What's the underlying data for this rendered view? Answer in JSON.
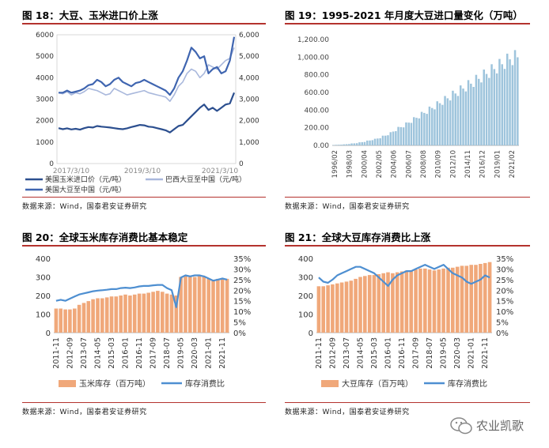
{
  "page": {
    "source_text": "数据来源：Wind，国泰君安证券研究",
    "watermark_text": "农业凯歌"
  },
  "chart_data": [
    {
      "id": "fig18",
      "title": "图 18：大豆、玉米进口价上涨",
      "type": "line",
      "x_ticks": [
        "2017/3/10",
        "2019/3/10",
        "2021/3/10"
      ],
      "ylim_left": [
        0,
        6000
      ],
      "y_ticks_left": [
        "0",
        "1000",
        "2000",
        "3000",
        "4000",
        "5000",
        "6000"
      ],
      "ylim_right": [
        0,
        6000
      ],
      "y_ticks_right": [
        "0",
        "1,000",
        "2,000",
        "3,000",
        "4,000",
        "5,000",
        "6,000"
      ],
      "series": [
        {
          "name": "美国玉米进口价（元/吨）",
          "color": "#2c4f8f",
          "axis": "left",
          "values": [
            1650,
            1600,
            1640,
            1590,
            1620,
            1580,
            1650,
            1700,
            1680,
            1750,
            1720,
            1700,
            1680,
            1650,
            1620,
            1600,
            1640,
            1700,
            1750,
            1800,
            1780,
            1720,
            1700,
            1650,
            1600,
            1550,
            1450,
            1600,
            1750,
            1800,
            2000,
            2200,
            2400,
            2600,
            2750,
            2500,
            2600,
            2450,
            2600,
            2750,
            2800,
            3300
          ]
        },
        {
          "name": "巴西大豆至中国（元/吨）",
          "color": "#a9b8dc",
          "axis": "right",
          "values": [
            3300,
            3250,
            3350,
            3200,
            3300,
            3250,
            3350,
            3500,
            3450,
            3400,
            3300,
            3200,
            3250,
            3500,
            3400,
            3300,
            3200,
            3250,
            3300,
            3350,
            3400,
            3300,
            3250,
            3200,
            3150,
            3100,
            2900,
            3200,
            3600,
            3800,
            4200,
            4400,
            4300,
            4000,
            4200,
            4600,
            4500,
            4400,
            4600,
            4800,
            4900,
            5400
          ]
        },
        {
          "name": "美国大豆至中国（元/吨）",
          "color": "#3f65b0",
          "axis": "right",
          "values": [
            3300,
            3300,
            3400,
            3300,
            3350,
            3400,
            3500,
            3650,
            3700,
            3900,
            3800,
            3600,
            3700,
            3900,
            4000,
            3800,
            3700,
            3600,
            3750,
            3800,
            3900,
            3800,
            3700,
            3600,
            3500,
            3400,
            3200,
            3500,
            4000,
            4300,
            4800,
            5400,
            5200,
            4900,
            5000,
            4200,
            4400,
            4500,
            4200,
            4300,
            4800,
            5900
          ]
        }
      ]
    },
    {
      "id": "fig19",
      "title": "图 19：1995-2021 年月度大豆进口量变化（万吨）",
      "type": "bar",
      "color": "#9ec4dc",
      "ylim": [
        0,
        1200
      ],
      "y_ticks": [
        "0.00",
        "200.00",
        "400.00",
        "600.00",
        "800.00",
        "1,000.00",
        "1,200.00"
      ],
      "x_ticks": [
        "1996/02",
        "1998/03",
        "2000/04",
        "2002/05",
        "2004/06",
        "2006/07",
        "2008/08",
        "2010/09",
        "2012/10",
        "2014/11",
        "2016/12",
        "2019/01",
        "2021/02"
      ],
      "values": [
        5,
        6,
        8,
        10,
        12,
        15,
        18,
        22,
        25,
        30,
        35,
        40,
        45,
        55,
        60,
        70,
        75,
        85,
        95,
        110,
        120,
        135,
        150,
        170,
        190,
        210,
        225,
        240,
        260,
        280,
        300,
        320,
        340,
        360,
        380,
        400,
        420,
        440,
        460,
        480,
        500,
        520,
        540,
        560,
        580,
        600,
        620,
        640,
        660,
        680,
        700,
        720,
        740,
        760,
        780,
        800,
        820,
        840,
        860,
        880,
        900,
        920,
        940,
        960,
        980,
        1000,
        1020,
        1040,
        1060,
        1070,
        1080,
        1085
      ]
    },
    {
      "id": "fig20",
      "title": "图 20：全球玉米库存消费比基本稳定",
      "type": "bar+line",
      "bar_color": "#f0a87a",
      "line_color": "#4e8fd1",
      "ylim_left": [
        0,
        400
      ],
      "y_ticks_left": [
        "0",
        "100",
        "200",
        "300",
        "400"
      ],
      "ylim_right": [
        0,
        35
      ],
      "y_ticks_right": [
        "0%",
        "5%",
        "10%",
        "15%",
        "20%",
        "25%",
        "30%",
        "35%"
      ],
      "x_ticks": [
        "2011-11",
        "2012-09",
        "2013-07",
        "2014-05",
        "2015-03",
        "2016-01",
        "2016-11",
        "2017-09",
        "2018-07",
        "2019-05",
        "2020-03",
        "2021-01",
        "2021-11"
      ],
      "legend": [
        "玉米库存（百万吨）",
        "库存消费比"
      ],
      "bars": [
        130,
        130,
        125,
        125,
        130,
        150,
        160,
        170,
        180,
        185,
        185,
        190,
        195,
        195,
        200,
        205,
        200,
        205,
        210,
        210,
        215,
        220,
        225,
        220,
        210,
        205,
        200,
        300,
        305,
        300,
        300,
        305,
        300,
        290,
        285,
        290,
        290,
        290
      ],
      "line": [
        15,
        15.5,
        15,
        16,
        17,
        18,
        18.5,
        19,
        19.5,
        19.8,
        20,
        20.2,
        20.5,
        20.5,
        21,
        21.2,
        21,
        21.3,
        21.8,
        22,
        22,
        22.3,
        22.5,
        22.5,
        21,
        20,
        12,
        26,
        27,
        26.5,
        27,
        27,
        26.5,
        25.5,
        24.5,
        25,
        25.5,
        25
      ]
    },
    {
      "id": "fig21",
      "title": "图 21：全球大豆库存消费比上涨",
      "type": "bar+line",
      "bar_color": "#f0a87a",
      "line_color": "#4e8fd1",
      "ylim_left": [
        0,
        400
      ],
      "y_ticks_left": [
        "0",
        "100",
        "200",
        "300",
        "400"
      ],
      "ylim_right": [
        0,
        35
      ],
      "y_ticks_right": [
        "0%",
        "5%",
        "10%",
        "15%",
        "20%",
        "25%",
        "30%",
        "35%"
      ],
      "x_ticks": [
        "2011-11",
        "2012-09",
        "2013-07",
        "2014-05",
        "2015-03",
        "2016-01",
        "2016-11",
        "2017-09",
        "2018-07",
        "2019-05",
        "2020-03",
        "2021-01",
        "2021-11"
      ],
      "legend": [
        "大豆库存（百万吨）",
        "库存消费比"
      ],
      "bars": [
        250,
        250,
        255,
        260,
        265,
        270,
        275,
        280,
        290,
        300,
        305,
        310,
        310,
        315,
        320,
        325,
        320,
        325,
        330,
        335,
        335,
        340,
        345,
        345,
        340,
        335,
        340,
        345,
        350,
        350,
        355,
        360,
        360,
        365,
        365,
        370,
        375,
        380
      ],
      "line": [
        26,
        24,
        23.5,
        25,
        27,
        28,
        29,
        30,
        31,
        31,
        30,
        29,
        28,
        26,
        24,
        22,
        25,
        27,
        28,
        29,
        29,
        30,
        31,
        32,
        31,
        30,
        31,
        32,
        30,
        28,
        27,
        26,
        24,
        23,
        24,
        25,
        27,
        26
      ]
    }
  ]
}
